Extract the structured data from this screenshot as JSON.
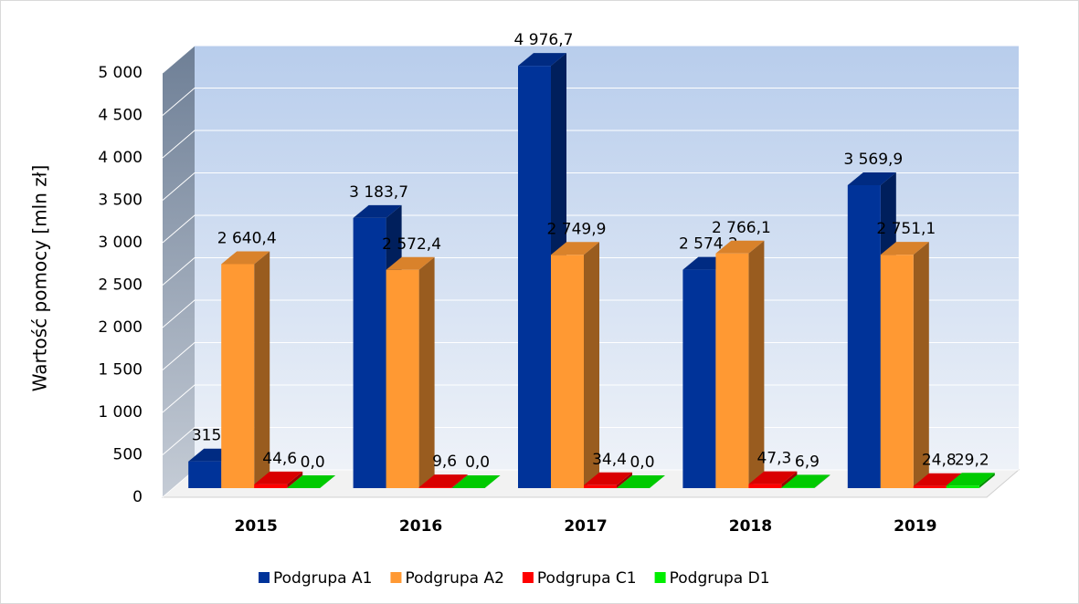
{
  "chart_data": {
    "type": "bar3d",
    "y_label": "Wartość pomocy [mln zł]",
    "categories": [
      "2015",
      "2016",
      "2017",
      "2018",
      "2019"
    ],
    "series": [
      {
        "name": "Podgrupa A1",
        "color": "#003399",
        "values": [
          315.1,
          3183.7,
          4976.7,
          2574.2,
          3569.9
        ],
        "value_labels": [
          "315,1",
          "3 183,7",
          "4 976,7",
          "2 574,2",
          "3 569,9"
        ]
      },
      {
        "name": "Podgrupa A2",
        "color": "#ff9933",
        "values": [
          2640.4,
          2572.4,
          2749.9,
          2766.1,
          2751.1
        ],
        "value_labels": [
          "2 640,4",
          "2 572,4",
          "2 749,9",
          "2 766,1",
          "2 751,1"
        ]
      },
      {
        "name": "Podgrupa C1",
        "color": "#ff0000",
        "values": [
          44.6,
          9.6,
          34.4,
          47.3,
          24.8
        ],
        "value_labels": [
          "44,6",
          "9,6",
          "34,4",
          "47,3",
          "24,8"
        ]
      },
      {
        "name": "Podgrupa D1",
        "color": "#00ee00",
        "values": [
          0.0,
          0.0,
          0.0,
          6.9,
          29.2
        ],
        "value_labels": [
          "0,0",
          "0,0",
          "0,0",
          "6,9",
          "29,2"
        ]
      }
    ],
    "ylim": [
      0,
      5000
    ],
    "yticks": [
      0,
      500,
      {
        "value": 1000,
        "label": "1 000"
      },
      {
        "value": 1500,
        "label": "1 500"
      },
      {
        "value": 2000,
        "label": "2 000"
      },
      {
        "value": 2500,
        "label": "2 500"
      },
      {
        "value": 3000,
        "label": "3 000"
      },
      {
        "value": 3500,
        "label": "3 500"
      },
      {
        "value": 4000,
        "label": "4 000"
      },
      {
        "value": 4500,
        "label": "4 500"
      },
      {
        "value": 5000,
        "label": "5 000"
      }
    ],
    "grid": true
  }
}
